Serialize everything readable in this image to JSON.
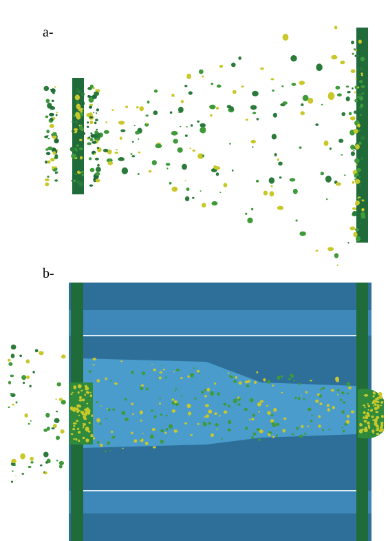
{
  "panels": [
    {
      "label": "a-"
    },
    {
      "label": "b-"
    }
  ]
}
